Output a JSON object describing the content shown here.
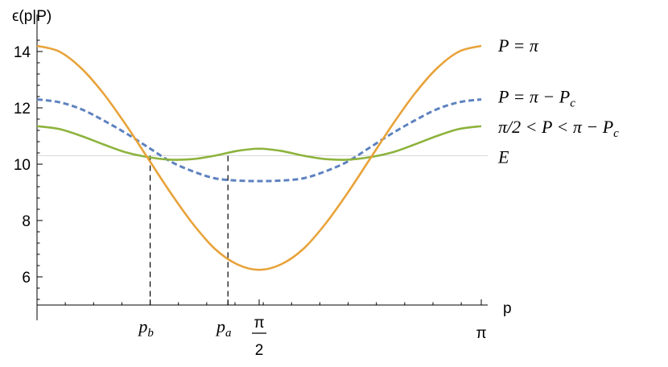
{
  "chart_data": {
    "type": "line",
    "ylabel": "ϵ(p|P)",
    "xlabel": "p",
    "xlim": [
      0,
      3.14159
    ],
    "ylim": [
      5,
      14.6
    ],
    "y_ticks": [
      6,
      8,
      10,
      12,
      14
    ],
    "x_ticks": [
      {
        "value": 0.8,
        "label_main": "p",
        "label_sub": "b"
      },
      {
        "value": 1.35,
        "label_main": "p",
        "label_sub": "a"
      },
      {
        "value": 1.5708,
        "label_num": "π",
        "label_den": "2"
      },
      {
        "value": 3.14159,
        "label": "π"
      }
    ],
    "reference_line": {
      "y": 10.3,
      "label": "E"
    },
    "markers": [
      {
        "x": 0.8,
        "y": 10.3
      },
      {
        "x": 1.35,
        "y": 10.3
      }
    ],
    "series": [
      {
        "name": "P = π",
        "label_parts": [
          "P = π"
        ],
        "color": "#e8a33a",
        "style": "solid",
        "x": [
          0,
          0.1571,
          0.3142,
          0.4712,
          0.6283,
          0.7854,
          0.9425,
          1.0996,
          1.2566,
          1.4137,
          1.5708,
          1.7279,
          1.885,
          2.042,
          2.1991,
          2.3562,
          2.5133,
          2.6704,
          2.8274,
          2.9845,
          3.1416
        ],
        "y": [
          14.2,
          14.0,
          13.4,
          12.5,
          11.4,
          10.2,
          9.0,
          7.9,
          7.0,
          6.45,
          6.25,
          6.45,
          7.0,
          7.9,
          9.0,
          10.2,
          11.4,
          12.5,
          13.4,
          14.0,
          14.2
        ]
      },
      {
        "name": "P = π − Pc",
        "label_parts": [
          "P = π − P",
          "c"
        ],
        "color": "#5e82bf",
        "style": "dashed",
        "x": [
          0,
          0.1571,
          0.3142,
          0.4712,
          0.6283,
          0.7854,
          0.9425,
          1.0996,
          1.2566,
          1.4137,
          1.5708,
          1.7279,
          1.885,
          2.042,
          2.1991,
          2.3562,
          2.5133,
          2.6704,
          2.8274,
          2.9845,
          3.1416
        ],
        "y": [
          12.3,
          12.2,
          11.95,
          11.55,
          11.1,
          10.6,
          10.1,
          9.75,
          9.5,
          9.42,
          9.4,
          9.42,
          9.5,
          9.75,
          10.1,
          10.6,
          11.1,
          11.55,
          11.95,
          12.2,
          12.3
        ]
      },
      {
        "name": "π/2 < P < π − Pc",
        "label_parts": [
          "π/2 < P < π − P",
          "c"
        ],
        "color": "#8db33d",
        "style": "solid",
        "x": [
          0,
          0.1571,
          0.3142,
          0.4712,
          0.6283,
          0.7854,
          0.9425,
          1.0996,
          1.2566,
          1.4137,
          1.5708,
          1.7279,
          1.885,
          2.042,
          2.1991,
          2.3562,
          2.5133,
          2.6704,
          2.8274,
          2.9845,
          3.1416
        ],
        "y": [
          11.35,
          11.25,
          11.0,
          10.7,
          10.42,
          10.25,
          10.16,
          10.18,
          10.3,
          10.47,
          10.55,
          10.47,
          10.3,
          10.18,
          10.16,
          10.25,
          10.42,
          10.7,
          11.0,
          11.25,
          11.35
        ]
      }
    ]
  }
}
